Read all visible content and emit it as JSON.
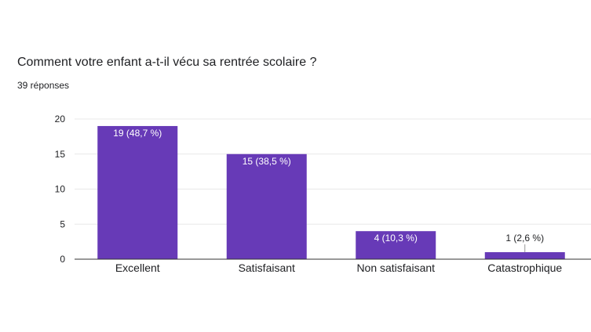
{
  "question": {
    "title": "Comment votre enfant a-t-il vécu sa rentrée scolaire ?",
    "response_count": "39 réponses"
  },
  "colors": {
    "bar": "#673ab7",
    "grid": "#e8e8e8",
    "axis": "#333333",
    "label_inside": "#ffffff",
    "label_outside": "#202124"
  },
  "chart_data": {
    "type": "bar",
    "categories": [
      "Excellent",
      "Satisfaisant",
      "Non satisfaisant",
      "Catastrophique"
    ],
    "values": [
      19,
      15,
      4,
      1
    ],
    "data_labels": [
      "19 (48,7 %)",
      "15 (38,5 %)",
      "4 (10,3 %)",
      "1 (2,6 %)"
    ],
    "yticks": [
      "0",
      "5",
      "10",
      "15",
      "20"
    ],
    "ylim": [
      0,
      20
    ],
    "grid": true,
    "legend": "none"
  }
}
